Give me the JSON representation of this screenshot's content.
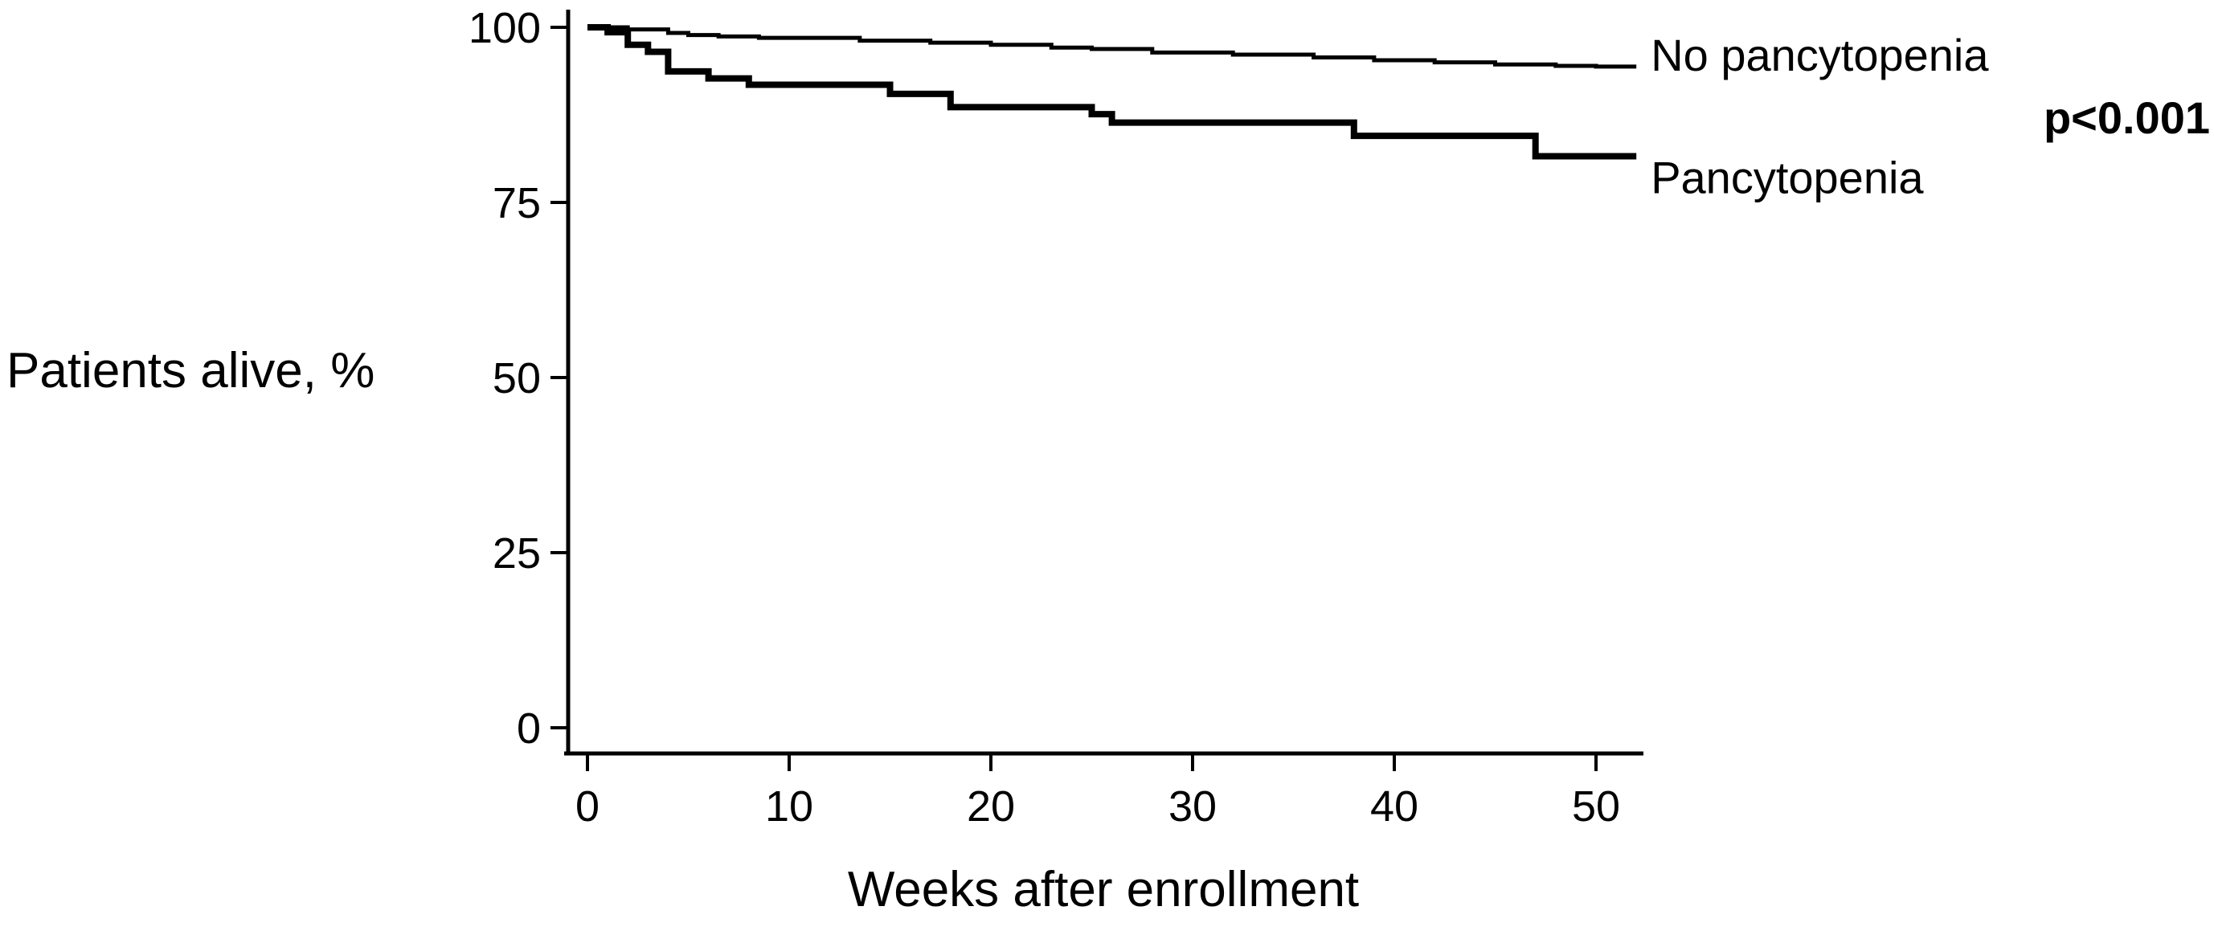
{
  "figure": {
    "p_value_label": "p<0.001"
  },
  "chart_data": {
    "type": "line",
    "subtype": "kaplan-meier-step",
    "title": "",
    "xlabel": "Weeks after enrollment",
    "ylabel": "Patients alive, %",
    "xlim": [
      0,
      52
    ],
    "ylim": [
      0,
      100
    ],
    "xticks": [
      0,
      10,
      20,
      30,
      40,
      50
    ],
    "yticks": [
      100,
      75,
      50,
      25,
      0
    ],
    "grid": false,
    "legend_position": "labels-at-line-ends",
    "annotations": [
      {
        "text": "p<0.001",
        "bold": true,
        "position": "right-edge-between-curves"
      }
    ],
    "x_end": 52,
    "line_color": "#000000",
    "series": [
      {
        "name": "No pancytopenia",
        "line_width": 5,
        "points": [
          [
            0,
            100
          ],
          [
            2,
            99.7
          ],
          [
            4,
            99.2
          ],
          [
            5,
            98.9
          ],
          [
            6.5,
            98.7
          ],
          [
            8.5,
            98.5
          ],
          [
            13.5,
            98.1
          ],
          [
            17,
            97.8
          ],
          [
            20,
            97.5
          ],
          [
            23,
            97.1
          ],
          [
            25,
            96.9
          ],
          [
            28,
            96.4
          ],
          [
            32,
            96.1
          ],
          [
            36,
            95.7
          ],
          [
            39,
            95.3
          ],
          [
            42,
            95.0
          ],
          [
            45,
            94.7
          ],
          [
            48,
            94.5
          ],
          [
            50,
            94.4
          ]
        ]
      },
      {
        "name": "Pancytopenia",
        "line_width": 8,
        "points": [
          [
            0,
            100
          ],
          [
            1,
            99.3
          ],
          [
            2,
            97.5
          ],
          [
            3,
            96.5
          ],
          [
            4,
            93.7
          ],
          [
            6,
            92.7
          ],
          [
            8,
            91.8
          ],
          [
            15,
            90.5
          ],
          [
            18,
            88.6
          ],
          [
            25,
            87.6
          ],
          [
            26,
            86.4
          ],
          [
            38,
            84.5
          ],
          [
            47,
            81.6
          ]
        ]
      }
    ]
  }
}
